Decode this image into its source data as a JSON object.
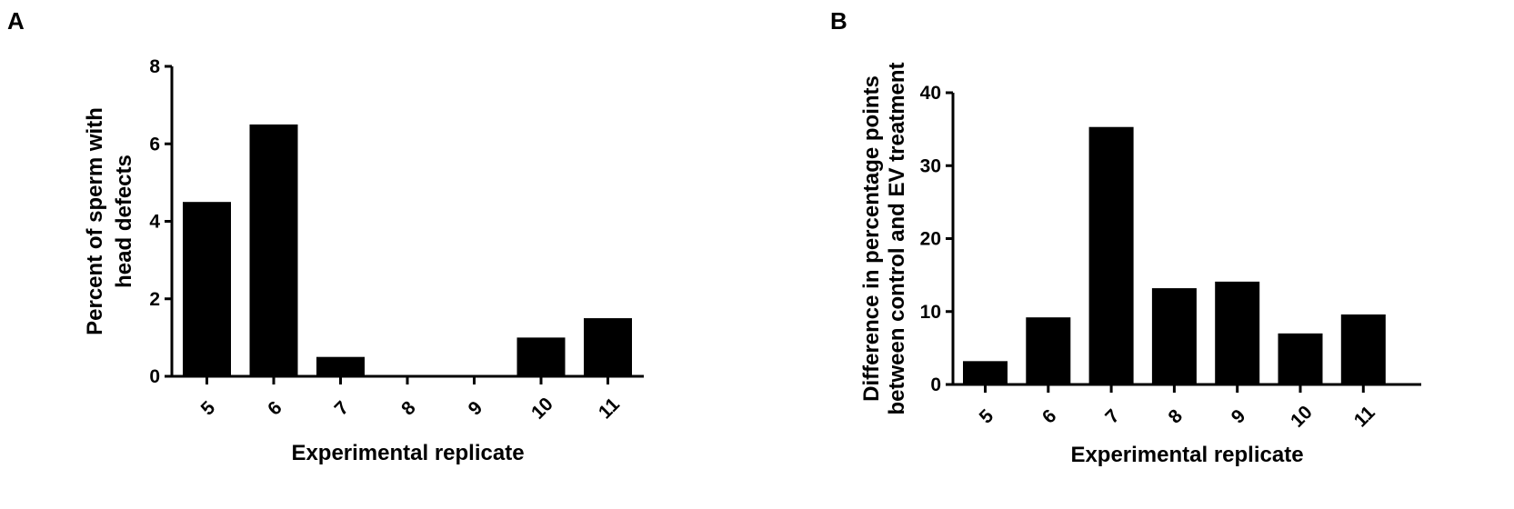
{
  "panels": {
    "a": {
      "label": "A"
    },
    "b": {
      "label": "B"
    }
  },
  "chart_data": [
    {
      "type": "bar",
      "panel": "A",
      "categories": [
        "5",
        "6",
        "7",
        "8",
        "9",
        "10",
        "11"
      ],
      "values": [
        4.5,
        6.5,
        0.5,
        0,
        0,
        1.0,
        1.5
      ],
      "xlabel": "Experimental replicate",
      "ylabel_lines": [
        "Percent of sperm with",
        "head defects"
      ],
      "ylim": [
        0,
        8
      ],
      "yticks": [
        0,
        2,
        4,
        6,
        8
      ],
      "bar_color": "#000000",
      "grid": false,
      "legend": false
    },
    {
      "type": "bar",
      "panel": "B",
      "categories": [
        "5",
        "6",
        "7",
        "8",
        "9",
        "10",
        "11"
      ],
      "values": [
        3.2,
        9.2,
        35.3,
        13.2,
        14.1,
        7.0,
        9.6
      ],
      "xlabel": "Experimental replicate",
      "ylabel_lines": [
        "Difference in percentage points",
        "between control and EV treatment"
      ],
      "ylim": [
        0,
        40
      ],
      "yticks": [
        0,
        10,
        20,
        30,
        40
      ],
      "bar_color": "#000000",
      "grid": false,
      "legend": false
    }
  ]
}
